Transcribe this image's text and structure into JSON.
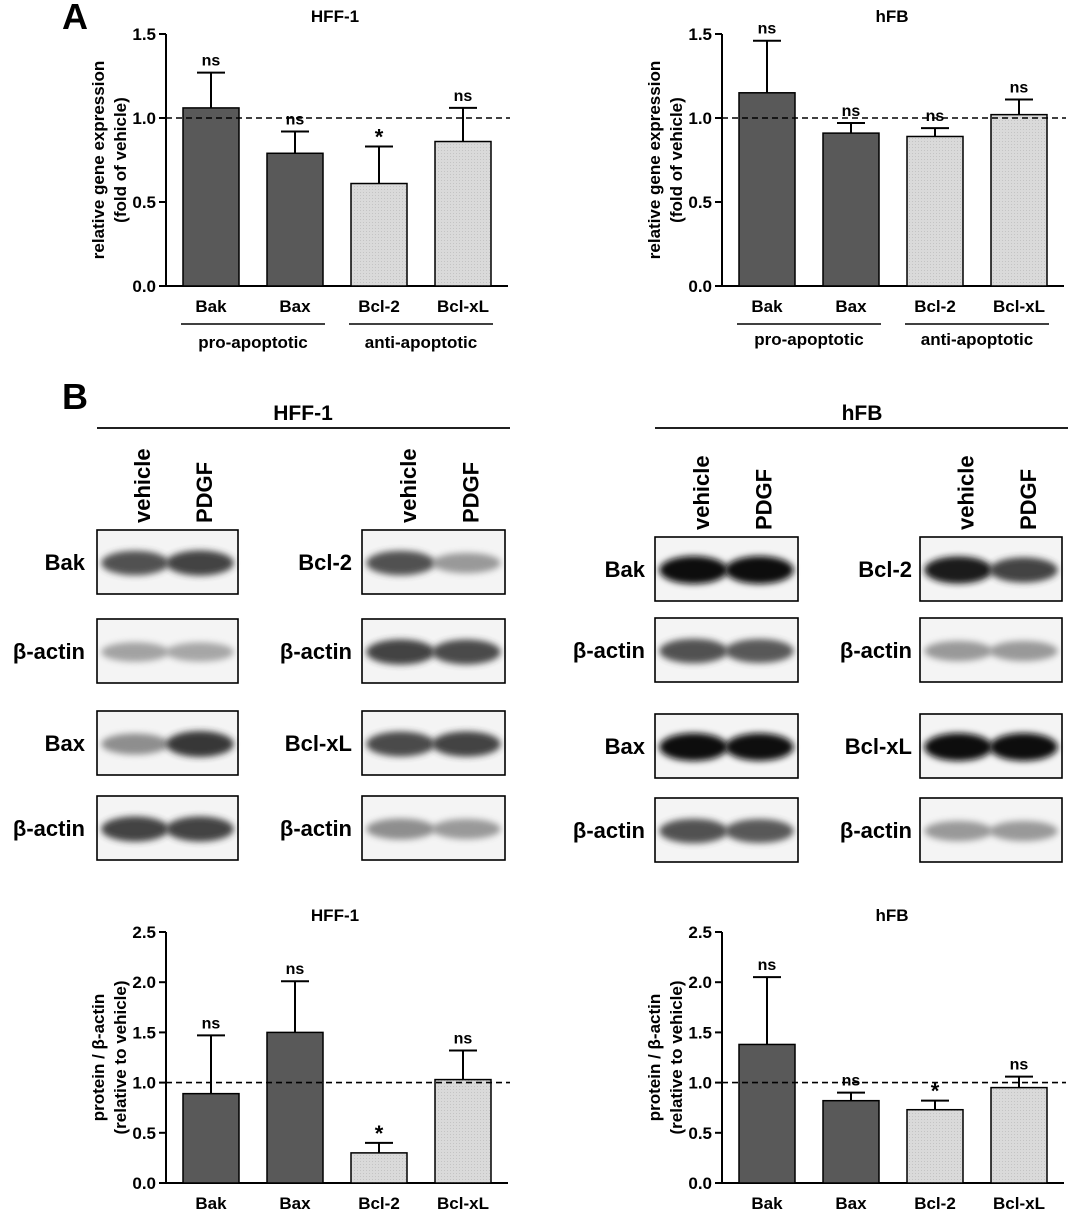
{
  "panel_labels": {
    "a": "A",
    "b": "B"
  },
  "colors": {
    "dark_bar": "#595959",
    "light_bar": "#d9d9d9",
    "axis": "#000000"
  },
  "chart_data": [
    {
      "id": "a-hff1",
      "type": "bar",
      "title": "HFF-1",
      "ylabel": [
        "relative gene expression",
        "(fold of vehicle)"
      ],
      "categories": [
        "Bak",
        "Bax",
        "Bcl-2",
        "Bcl-xL"
      ],
      "values": [
        1.06,
        0.79,
        0.61,
        0.86
      ],
      "errors": [
        0.21,
        0.13,
        0.22,
        0.2
      ],
      "annotations": [
        "ns",
        "ns",
        "*",
        "ns"
      ],
      "bar_styles": [
        "dark",
        "dark",
        "light",
        "light"
      ],
      "ylim": [
        0,
        1.5
      ],
      "yticks": [
        "0.0",
        "0.5",
        "1.0",
        "1.5"
      ],
      "reference_line": 1.0,
      "groups": [
        {
          "label": "pro-apoptotic",
          "categories": [
            "Bak",
            "Bax"
          ]
        },
        {
          "label": "anti-apoptotic",
          "categories": [
            "Bcl-2",
            "Bcl-xL"
          ]
        }
      ]
    },
    {
      "id": "a-hfb",
      "type": "bar",
      "title": "hFB",
      "ylabel": [
        "relative gene expression",
        "(fold of vehicle)"
      ],
      "categories": [
        "Bak",
        "Bax",
        "Bcl-2",
        "Bcl-xL"
      ],
      "values": [
        1.15,
        0.91,
        0.89,
        1.02
      ],
      "errors": [
        0.31,
        0.06,
        0.05,
        0.09
      ],
      "annotations": [
        "ns",
        "ns",
        "ns",
        "ns"
      ],
      "bar_styles": [
        "dark",
        "dark",
        "light",
        "light"
      ],
      "ylim": [
        0,
        1.5
      ],
      "yticks": [
        "0.0",
        "0.5",
        "1.0",
        "1.5"
      ],
      "reference_line": 1.0,
      "groups": [
        {
          "label": "pro-apoptotic",
          "categories": [
            "Bak",
            "Bax"
          ]
        },
        {
          "label": "anti-apoptotic",
          "categories": [
            "Bcl-2",
            "Bcl-xL"
          ]
        }
      ]
    },
    {
      "id": "b-hff1",
      "type": "bar",
      "title": "HFF-1",
      "ylabel": [
        "protein / β-actin",
        "(relative to vehicle)"
      ],
      "categories": [
        "Bak",
        "Bax",
        "Bcl-2",
        "Bcl-xL"
      ],
      "values": [
        0.89,
        1.5,
        0.3,
        1.03
      ],
      "errors": [
        0.58,
        0.51,
        0.1,
        0.29
      ],
      "annotations": [
        "ns",
        "ns",
        "*",
        "ns"
      ],
      "bar_styles": [
        "dark",
        "dark",
        "light",
        "light"
      ],
      "ylim": [
        0,
        2.5
      ],
      "yticks": [
        "0.0",
        "0.5",
        "1.0",
        "1.5",
        "2.0",
        "2.5"
      ],
      "reference_line": 1.0
    },
    {
      "id": "b-hfb",
      "type": "bar",
      "title": "hFB",
      "ylabel": [
        "protein / β-actin",
        "(relative to vehicle)"
      ],
      "categories": [
        "Bak",
        "Bax",
        "Bcl-2",
        "Bcl-xL"
      ],
      "values": [
        1.38,
        0.82,
        0.73,
        0.95
      ],
      "errors": [
        0.67,
        0.08,
        0.09,
        0.11
      ],
      "annotations": [
        "ns",
        "ns",
        "*",
        "ns"
      ],
      "bar_styles": [
        "dark",
        "dark",
        "light",
        "light"
      ],
      "ylim": [
        0,
        2.5
      ],
      "yticks": [
        "0.0",
        "0.5",
        "1.0",
        "1.5",
        "2.0",
        "2.5"
      ],
      "reference_line": 1.0
    }
  ],
  "western_blots": [
    {
      "id": "wb-hff1",
      "cell_line": "HFF-1",
      "lanes": [
        "vehicle",
        "PDGF"
      ],
      "blots": [
        {
          "label": "Bak",
          "bands": [
            0.75,
            0.8
          ]
        },
        {
          "label": "β-actin",
          "bands": [
            0.4,
            0.38
          ]
        },
        {
          "label": "Bax",
          "bands": [
            0.5,
            0.85
          ]
        },
        {
          "label": "β-actin",
          "bands": [
            0.8,
            0.8
          ]
        },
        {
          "label": "Bcl-2",
          "bands": [
            0.75,
            0.45
          ]
        },
        {
          "label": "β-actin",
          "bands": [
            0.8,
            0.78
          ]
        },
        {
          "label": "Bcl-xL",
          "bands": [
            0.78,
            0.8
          ]
        },
        {
          "label": "β-actin",
          "bands": [
            0.5,
            0.45
          ]
        }
      ]
    },
    {
      "id": "wb-hfb",
      "cell_line": "hFB",
      "lanes": [
        "vehicle",
        "PDGF"
      ],
      "blots": [
        {
          "label": "Bak",
          "bands": [
            1.0,
            1.0
          ]
        },
        {
          "label": "β-actin",
          "bands": [
            0.75,
            0.72
          ]
        },
        {
          "label": "Bax",
          "bands": [
            1.0,
            0.98
          ]
        },
        {
          "label": "β-actin",
          "bands": [
            0.75,
            0.72
          ]
        },
        {
          "label": "Bcl-2",
          "bands": [
            0.95,
            0.8
          ]
        },
        {
          "label": "β-actin",
          "bands": [
            0.45,
            0.45
          ]
        },
        {
          "label": "Bcl-xL",
          "bands": [
            1.0,
            1.0
          ]
        },
        {
          "label": "β-actin",
          "bands": [
            0.45,
            0.45
          ]
        }
      ]
    }
  ]
}
